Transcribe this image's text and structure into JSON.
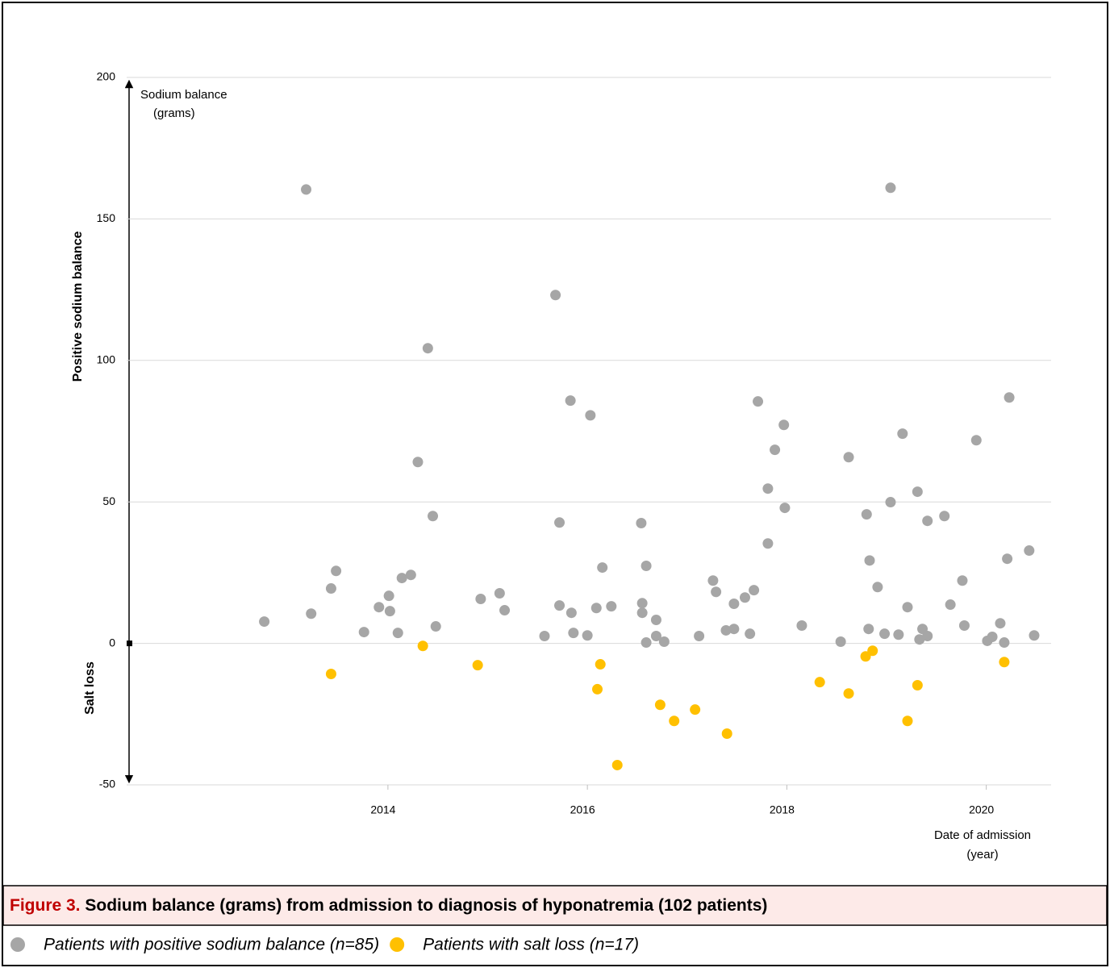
{
  "chart_data": {
    "type": "scatter",
    "figure_label": "Figure 3.",
    "title": "Sodium balance (grams) from admission to diagnosis of hyponatremia (102 patients)",
    "y_annotation": [
      "Sodium balance",
      "(grams)"
    ],
    "x_annotation": [
      "Date of admission",
      "(year)"
    ],
    "y_label_positive": "Positive sodium balance",
    "y_label_negative": "Salt loss",
    "xlim": [
      2011.38,
      2020.65
    ],
    "xticks": [
      2014,
      2016,
      2018,
      2020
    ],
    "ylim": [
      -50,
      200
    ],
    "yticks": [
      200,
      150,
      100,
      50,
      0,
      -50
    ],
    "grid": true,
    "series": [
      {
        "name": "Patients with positive sodium balance (n=85)",
        "color": "#a6a6a6",
        "x": [
          2012.76,
          2013.18,
          2013.23,
          2013.43,
          2013.48,
          2013.76,
          2013.91,
          2014.01,
          2014.02,
          2014.1,
          2014.14,
          2014.23,
          2014.3,
          2014.4,
          2014.45,
          2014.48,
          2014.93,
          2015.12,
          2015.17,
          2015.57,
          2015.68,
          2015.72,
          2015.72,
          2015.83,
          2015.84,
          2015.86,
          2016.0,
          2016.03,
          2016.09,
          2016.15,
          2016.24,
          2016.54,
          2016.55,
          2016.55,
          2016.59,
          2016.59,
          2016.69,
          2016.69,
          2016.77,
          2017.12,
          2017.26,
          2017.29,
          2017.39,
          2017.47,
          2017.47,
          2017.58,
          2017.63,
          2017.67,
          2017.71,
          2017.81,
          2017.81,
          2017.88,
          2017.97,
          2017.98,
          2018.15,
          2018.54,
          2018.62,
          2018.8,
          2018.82,
          2018.83,
          2018.91,
          2018.98,
          2019.04,
          2019.04,
          2019.12,
          2019.16,
          2019.21,
          2019.31,
          2019.33,
          2019.36,
          2019.41,
          2019.41,
          2019.58,
          2019.64,
          2019.76,
          2019.78,
          2019.9,
          2020.01,
          2020.06,
          2020.14,
          2020.18,
          2020.21,
          2020.23,
          2020.43,
          2020.48
        ],
        "values": [
          7.7,
          160.4,
          10.5,
          19.4,
          25.6,
          4.0,
          12.8,
          16.8,
          11.4,
          3.7,
          23.1,
          24.2,
          64.1,
          104.3,
          45.0,
          6.0,
          15.7,
          17.7,
          11.7,
          2.6,
          123.1,
          42.7,
          13.4,
          85.8,
          10.8,
          3.7,
          2.8,
          80.6,
          12.5,
          26.8,
          13.1,
          42.5,
          10.8,
          14.2,
          27.4,
          0.3,
          8.3,
          2.6,
          0.6,
          2.6,
          22.2,
          18.2,
          4.6,
          14.0,
          5.1,
          16.2,
          3.4,
          18.8,
          85.5,
          54.7,
          35.3,
          68.4,
          77.2,
          47.9,
          6.3,
          0.6,
          65.8,
          45.6,
          5.1,
          29.3,
          19.9,
          3.4,
          161.0,
          49.9,
          3.1,
          74.1,
          12.8,
          53.6,
          1.4,
          5.1,
          2.6,
          43.3,
          45.0,
          13.7,
          22.2,
          6.3,
          71.8,
          0.9,
          2.3,
          7.1,
          0.3,
          29.9,
          86.9,
          32.8,
          2.8
        ]
      },
      {
        "name": "Patients with salt loss (n=17)",
        "color": "#ffc000",
        "x": [
          2013.43,
          2014.35,
          2014.9,
          2016.1,
          2016.13,
          2016.3,
          2016.73,
          2016.87,
          2017.08,
          2017.4,
          2018.33,
          2018.62,
          2018.79,
          2018.86,
          2019.21,
          2019.31,
          2020.18
        ],
        "values": [
          -10.8,
          -0.9,
          -7.7,
          -16.2,
          -7.4,
          -43.0,
          -21.7,
          -27.4,
          -23.4,
          -31.9,
          -13.7,
          -17.7,
          -4.6,
          -2.6,
          -27.4,
          -14.8,
          -6.6
        ]
      }
    ]
  }
}
